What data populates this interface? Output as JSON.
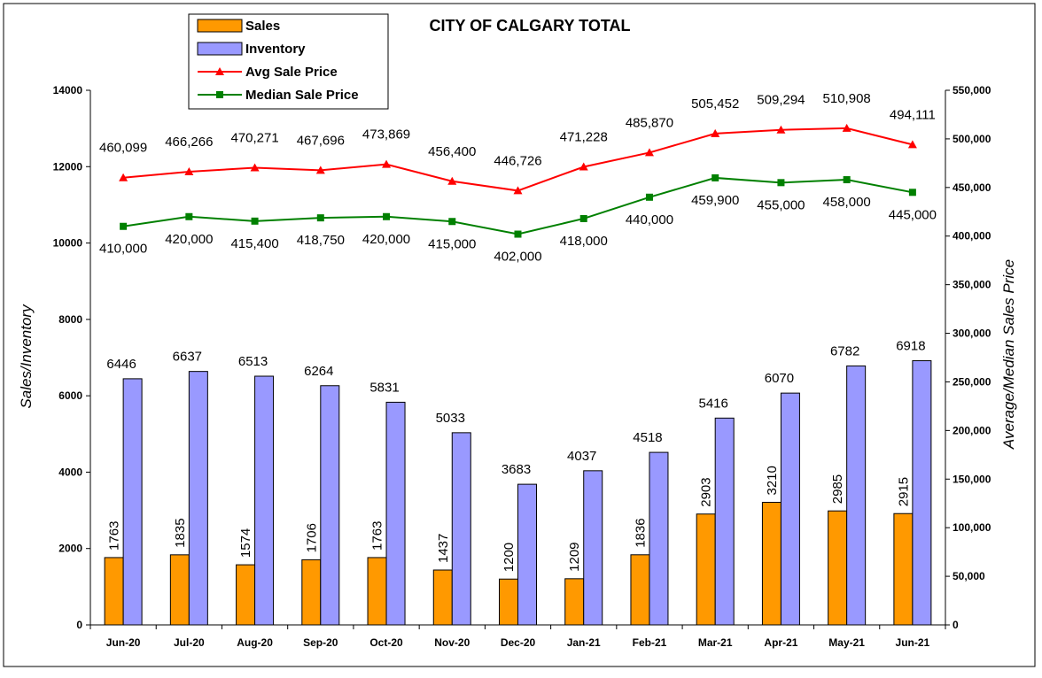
{
  "chart_data": {
    "type": "bar",
    "title": "CITY OF CALGARY TOTAL",
    "categories": [
      "Jun-20",
      "Jul-20",
      "Aug-20",
      "Sep-20",
      "Oct-20",
      "Nov-20",
      "Dec-20",
      "Jan-21",
      "Feb-21",
      "Mar-21",
      "Apr-21",
      "May-21",
      "Jun-21"
    ],
    "ylabel": "Sales/Inventory",
    "y2label": "Average/Median Sales Price",
    "ylim": [
      0,
      14000
    ],
    "y2lim": [
      0,
      550000
    ],
    "y_ticks": [
      "0",
      "2000",
      "4000",
      "6000",
      "8000",
      "10000",
      "12000",
      "14000"
    ],
    "y2_ticks": [
      "0",
      "50,000",
      "100,000",
      "150,000",
      "200,000",
      "250,000",
      "300,000",
      "350,000",
      "400,000",
      "450,000",
      "500,000",
      "550,000"
    ],
    "legend_position": "top-left",
    "grid": false,
    "series": [
      {
        "name": "Sales",
        "type": "bar",
        "axis": "left",
        "color": "#FF9900",
        "values": [
          1763,
          1835,
          1574,
          1706,
          1763,
          1437,
          1200,
          1209,
          1836,
          2903,
          3210,
          2985,
          2915
        ],
        "labels": [
          "1763",
          "1835",
          "1574",
          "1706",
          "1763",
          "1437",
          "1200",
          "1209",
          "1836",
          "2903",
          "3210",
          "2985",
          "2915"
        ]
      },
      {
        "name": "Inventory",
        "type": "bar",
        "axis": "left",
        "color": "#9999FF",
        "values": [
          6446,
          6637,
          6513,
          6264,
          5831,
          5033,
          3683,
          4037,
          4518,
          5416,
          6070,
          6782,
          6918
        ],
        "labels": [
          "6446",
          "6637",
          "6513",
          "6264",
          "5831",
          "5033",
          "3683",
          "4037",
          "4518",
          "5416",
          "6070",
          "6782",
          "6918"
        ]
      },
      {
        "name": "Avg Sale Price",
        "type": "line",
        "axis": "right",
        "color": "#FF0000",
        "marker": "triangle",
        "values": [
          460099,
          466266,
          470271,
          467696,
          473869,
          456400,
          446726,
          471228,
          485870,
          505452,
          509294,
          510908,
          494111
        ],
        "labels": [
          "460,099",
          "466,266",
          "470,271",
          "467,696",
          "473,869",
          "456,400",
          "446,726",
          "471,228",
          "485,870",
          "505,452",
          "509,294",
          "510,908",
          "494,111"
        ]
      },
      {
        "name": "Median Sale Price",
        "type": "line",
        "axis": "right",
        "color": "#008000",
        "marker": "square",
        "values": [
          410000,
          420000,
          415400,
          418750,
          420000,
          415000,
          402000,
          418000,
          440000,
          459900,
          455000,
          458000,
          445000
        ],
        "labels": [
          "410,000",
          "420,000",
          "415,400",
          "418,750",
          "420,000",
          "415,000",
          "402,000",
          "418,000",
          "440,000",
          "459,900",
          "455,000",
          "458,000",
          "445,000"
        ]
      }
    ]
  }
}
